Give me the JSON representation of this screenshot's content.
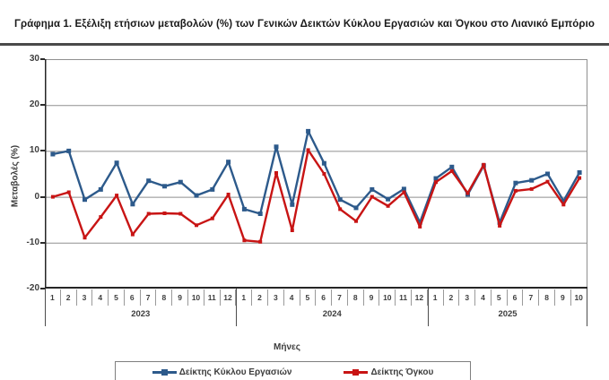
{
  "page": {
    "title": "Γράφημα 1. Εξέλιξη ετήσιων μεταβολών (%) των Γενικών Δεικτών Κύκλου Εργασιών και Όγκου στο Λιανικό Εμπόριο"
  },
  "chart_data": {
    "type": "line",
    "title": "Γράφημα 1. Εξέλιξη ετήσιων μεταβολών (%) των Γενικών Δεικτών Κύκλου Εργασιών και Όγκου στο Λιανικό Εμπόριο",
    "xlabel": "Μήνες",
    "ylabel": "Μεταβολές  (%)",
    "ylim": [
      -20,
      30
    ],
    "yticks": [
      30,
      20,
      10,
      0,
      -10,
      -20
    ],
    "grid": true,
    "legend_position": "bottom",
    "x_years": [
      {
        "label": "2023",
        "months": [
          "1",
          "2",
          "3",
          "4",
          "5",
          "6",
          "7",
          "8",
          "9",
          "10",
          "11",
          "12"
        ]
      },
      {
        "label": "2024",
        "months": [
          "1",
          "2",
          "3",
          "4",
          "5",
          "6",
          "7",
          "8",
          "9",
          "10",
          "11",
          "12"
        ]
      },
      {
        "label": "2025",
        "months": [
          "1",
          "2",
          "3",
          "4",
          "5",
          "6",
          "7",
          "8",
          "9",
          "10"
        ]
      }
    ],
    "series": [
      {
        "name": "Δείκτης Κύκλου Εργασιών",
        "color": "#2d5a8b",
        "marker": "square",
        "values": [
          9.3,
          10.0,
          -0.6,
          1.6,
          7.4,
          -1.6,
          3.5,
          2.3,
          3.2,
          0.3,
          1.6,
          7.6,
          -2.7,
          -3.7,
          10.9,
          -1.7,
          14.3,
          7.3,
          -0.6,
          -2.4,
          1.6,
          -0.5,
          1.7,
          -5.6,
          4.0,
          6.5,
          0.5,
          6.8,
          -5.6,
          3.0,
          3.6,
          5.0,
          -0.9,
          5.3
        ]
      },
      {
        "name": "Δείκτης Όγκου",
        "color": "#c81414",
        "marker": "square",
        "values": [
          0.0,
          1.0,
          -8.9,
          -4.4,
          0.3,
          -8.2,
          -3.7,
          -3.6,
          -3.7,
          -6.2,
          -4.7,
          0.5,
          -9.5,
          -9.8,
          5.2,
          -7.3,
          10.2,
          5.0,
          -2.7,
          -5.3,
          0.0,
          -2.0,
          1.0,
          -6.5,
          3.2,
          5.6,
          0.8,
          7.0,
          -6.3,
          1.3,
          1.7,
          3.3,
          -1.7,
          4.1
        ]
      }
    ],
    "colors": {
      "grid": "#8f8f8f",
      "axis": "#262626",
      "text": "#3d3d3d"
    }
  }
}
